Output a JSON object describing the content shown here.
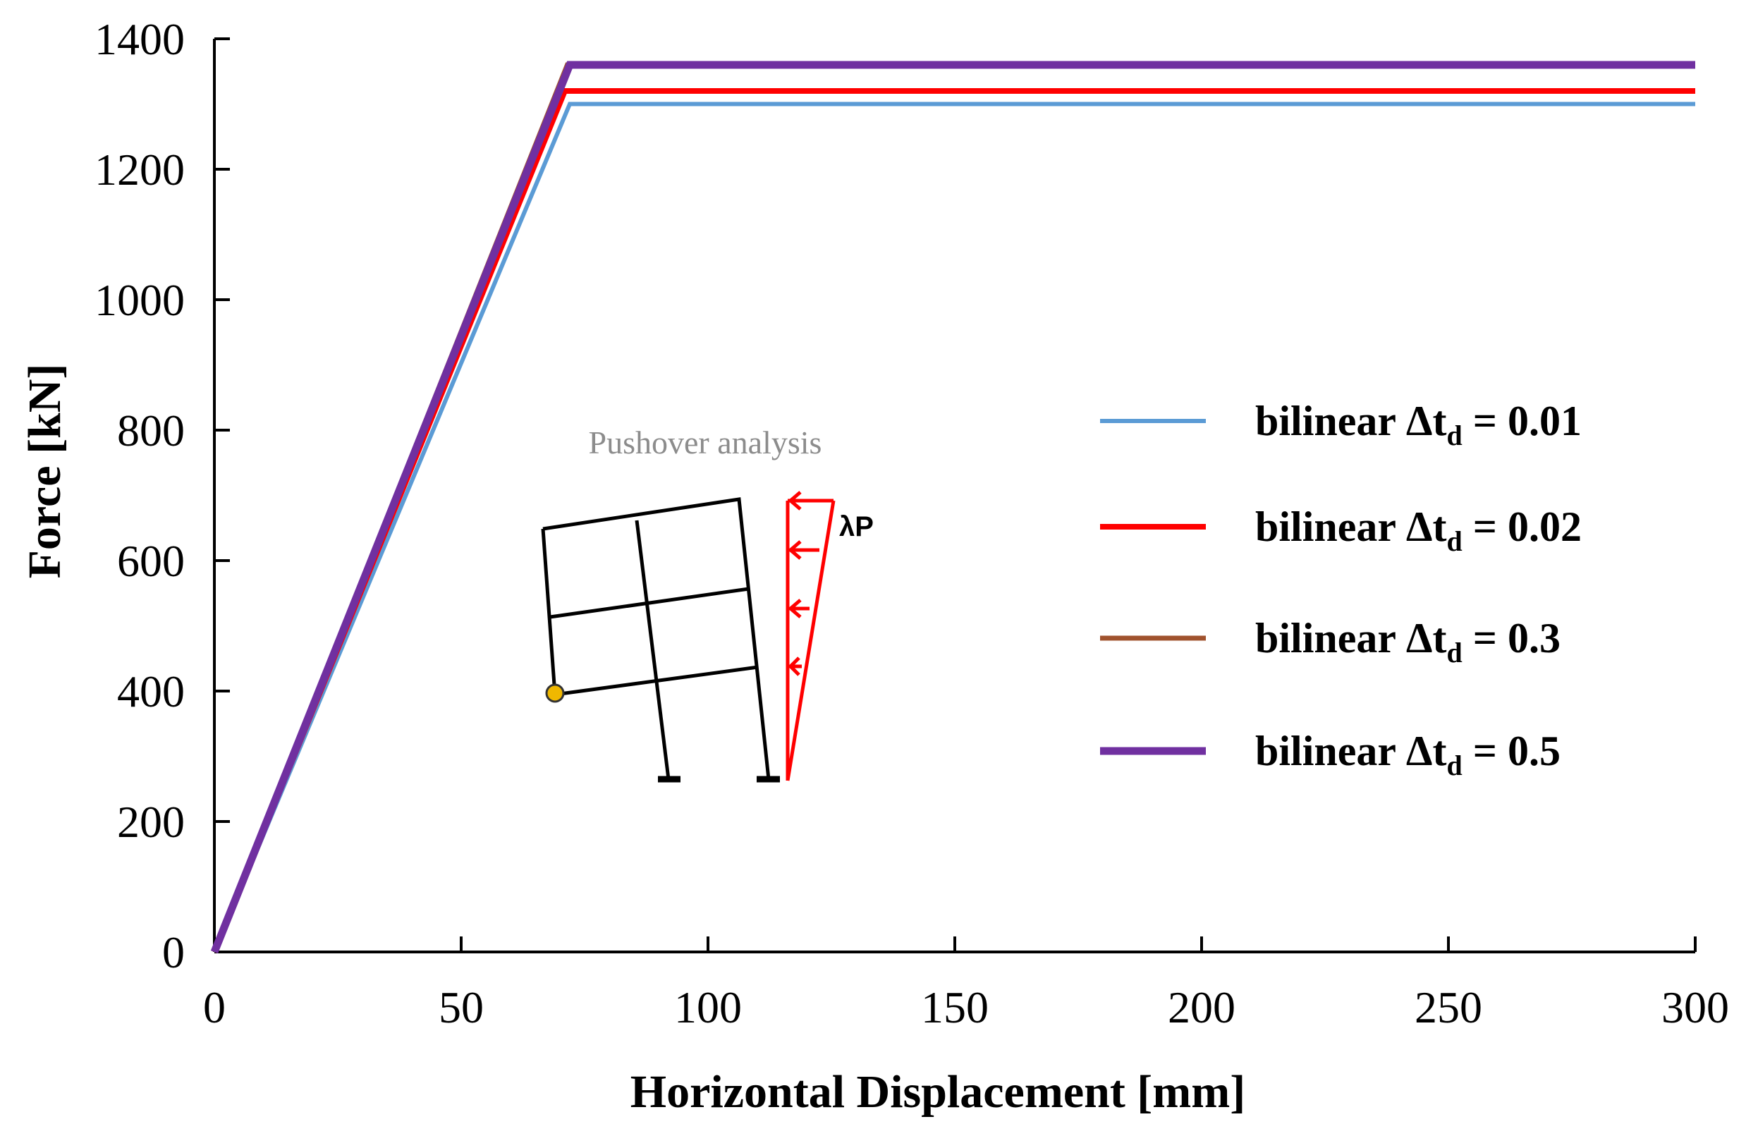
{
  "chart_data": {
    "type": "line",
    "title": "",
    "xlabel": "Horizontal Displacement [mm]",
    "ylabel": "Force [kN]",
    "xlim": [
      0,
      300
    ],
    "ylim": [
      0,
      1400
    ],
    "xticks": [
      0,
      50,
      100,
      150,
      200,
      250,
      300
    ],
    "yticks": [
      0,
      200,
      400,
      600,
      800,
      1000,
      1200,
      1400
    ],
    "grid": false,
    "legend_position": "center-right",
    "series": [
      {
        "name": "bilinear Δtd = 0.01",
        "label_main": "bilinear Δt",
        "label_sub": "d",
        "label_value": " = 0.01",
        "color": "#5b9bd5",
        "x": [
          0,
          72,
          300
        ],
        "y": [
          0,
          1300,
          1300
        ]
      },
      {
        "name": "bilinear Δtd = 0.02",
        "label_main": "bilinear Δt",
        "label_sub": "d",
        "label_value": " = 0.02",
        "color": "#ff0000",
        "x": [
          0,
          71,
          300
        ],
        "y": [
          0,
          1320,
          1320
        ]
      },
      {
        "name": "bilinear Δtd = 0.3",
        "label_main": "bilinear Δt",
        "label_sub": "d",
        "label_value": " = 0.3",
        "color": "#a0522d",
        "x": [
          0,
          71.5,
          300
        ],
        "y": [
          0,
          1360,
          1360
        ]
      },
      {
        "name": "bilinear Δtd = 0.5",
        "label_main": "bilinear Δt",
        "label_sub": "d",
        "label_value": " = 0.5",
        "color": "#7030a0",
        "x": [
          0,
          72,
          300
        ],
        "y": [
          0,
          1360,
          1360
        ]
      }
    ],
    "inset": {
      "title": "Pushover analysis",
      "load_label": "λP"
    }
  }
}
